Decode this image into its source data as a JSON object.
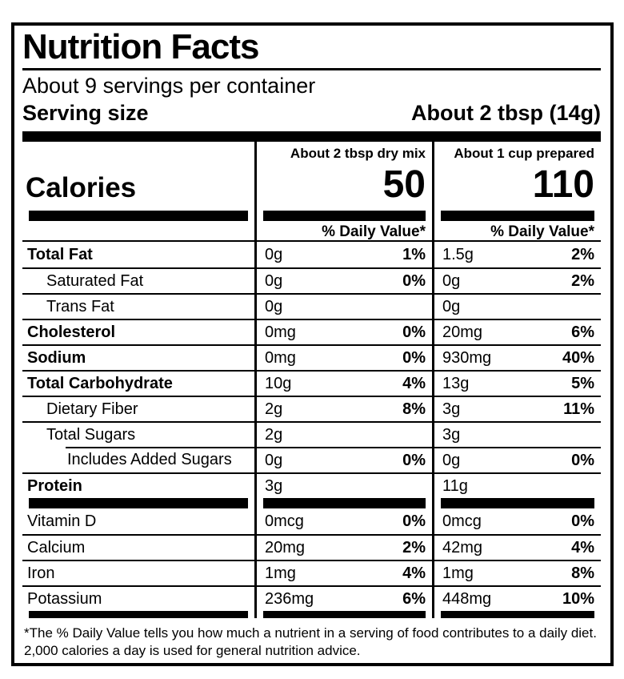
{
  "label": {
    "title": "Nutrition Facts",
    "servings_per_container": "About 9 servings per container",
    "serving_size_label": "Serving size",
    "serving_size_value": "About 2 tbsp (14g)",
    "calories_label": "Calories",
    "daily_value_header": "% Daily Value*",
    "columns": [
      {
        "header": "About 2 tbsp dry mix",
        "calories": "50"
      },
      {
        "header": "About 1 cup prepared",
        "calories": "110"
      }
    ],
    "nutrients": [
      {
        "name": "Total Fat",
        "bold": true,
        "indent": 0,
        "col1": {
          "amount": "0g",
          "dv": "1%"
        },
        "col2": {
          "amount": "1.5g",
          "dv": "2%"
        }
      },
      {
        "name": "Saturated Fat",
        "bold": false,
        "indent": 1,
        "col1": {
          "amount": "0g",
          "dv": "0%"
        },
        "col2": {
          "amount": "0g",
          "dv": "2%"
        }
      },
      {
        "name": "Trans Fat",
        "bold": false,
        "indent": 1,
        "col1": {
          "amount": "0g",
          "dv": ""
        },
        "col2": {
          "amount": "0g",
          "dv": ""
        }
      },
      {
        "name": "Cholesterol",
        "bold": true,
        "indent": 0,
        "col1": {
          "amount": "0mg",
          "dv": "0%"
        },
        "col2": {
          "amount": "20mg",
          "dv": "6%"
        }
      },
      {
        "name": "Sodium",
        "bold": true,
        "indent": 0,
        "col1": {
          "amount": "0mg",
          "dv": "0%"
        },
        "col2": {
          "amount": "930mg",
          "dv": "40%"
        }
      },
      {
        "name": "Total Carbohydrate",
        "bold": true,
        "indent": 0,
        "col1": {
          "amount": "10g",
          "dv": "4%"
        },
        "col2": {
          "amount": "13g",
          "dv": "5%"
        }
      },
      {
        "name": "Dietary Fiber",
        "bold": false,
        "indent": 1,
        "col1": {
          "amount": "2g",
          "dv": "8%"
        },
        "col2": {
          "amount": "3g",
          "dv": "11%"
        }
      },
      {
        "name": "Total Sugars",
        "bold": false,
        "indent": 1,
        "col1": {
          "amount": "2g",
          "dv": ""
        },
        "col2": {
          "amount": "3g",
          "dv": ""
        }
      },
      {
        "name": "Includes Added Sugars",
        "bold": false,
        "indent": 2,
        "col1": {
          "amount": "0g",
          "dv": "0%"
        },
        "col2": {
          "amount": "0g",
          "dv": "0%"
        }
      },
      {
        "name": "Protein",
        "bold": true,
        "indent": 0,
        "col1": {
          "amount": "3g",
          "dv": ""
        },
        "col2": {
          "amount": "11g",
          "dv": ""
        }
      }
    ],
    "micronutrients": [
      {
        "name": "Vitamin D",
        "bold": false,
        "indent": 0,
        "col1": {
          "amount": "0mcg",
          "dv": "0%"
        },
        "col2": {
          "amount": "0mcg",
          "dv": "0%"
        }
      },
      {
        "name": "Calcium",
        "bold": false,
        "indent": 0,
        "col1": {
          "amount": "20mg",
          "dv": "2%"
        },
        "col2": {
          "amount": "42mg",
          "dv": "4%"
        }
      },
      {
        "name": "Iron",
        "bold": false,
        "indent": 0,
        "col1": {
          "amount": "1mg",
          "dv": "4%"
        },
        "col2": {
          "amount": "1mg",
          "dv": "8%"
        }
      },
      {
        "name": "Potassium",
        "bold": false,
        "indent": 0,
        "col1": {
          "amount": "236mg",
          "dv": "6%"
        },
        "col2": {
          "amount": "448mg",
          "dv": "10%"
        }
      }
    ],
    "footnote_line1": "*The % Daily Value tells you how much a nutrient in a serving of food contributes to a daily diet.",
    "footnote_line2": "2,000 calories a day is used for general nutrition advice.",
    "colors": {
      "ink": "#000000",
      "background": "#ffffff"
    }
  }
}
